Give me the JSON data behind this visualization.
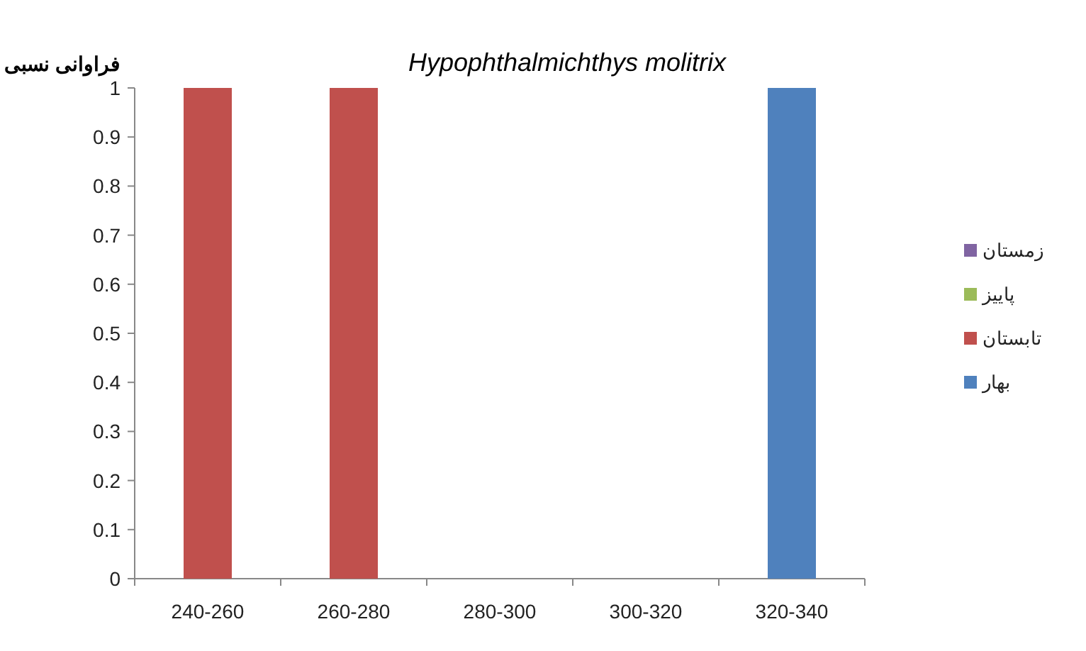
{
  "chart_data": {
    "type": "bar",
    "title": "Hypophthalmichthys molitrix",
    "ylabel": "فراوانی نسبی",
    "categories": [
      "240-260",
      "260-280",
      "280-300",
      "300-320",
      "320-340"
    ],
    "series": [
      {
        "name": "بهار",
        "color": "#4f81bd",
        "values": [
          0,
          0,
          0,
          0,
          1
        ]
      },
      {
        "name": "تابستان",
        "color": "#c0504d",
        "values": [
          1,
          1,
          0,
          0,
          0
        ]
      },
      {
        "name": "پاییز",
        "color": "#9bbb59",
        "values": [
          0,
          0,
          0,
          0,
          0
        ]
      },
      {
        "name": "زمستان",
        "color": "#8064a2",
        "values": [
          0,
          0,
          0,
          0,
          0
        ]
      }
    ],
    "stacked": true,
    "ylim": [
      0,
      1
    ],
    "yticks": [
      0,
      0.1,
      0.2,
      0.3,
      0.4,
      0.5,
      0.6,
      0.7,
      0.8,
      0.9,
      1
    ],
    "legend": "right"
  }
}
